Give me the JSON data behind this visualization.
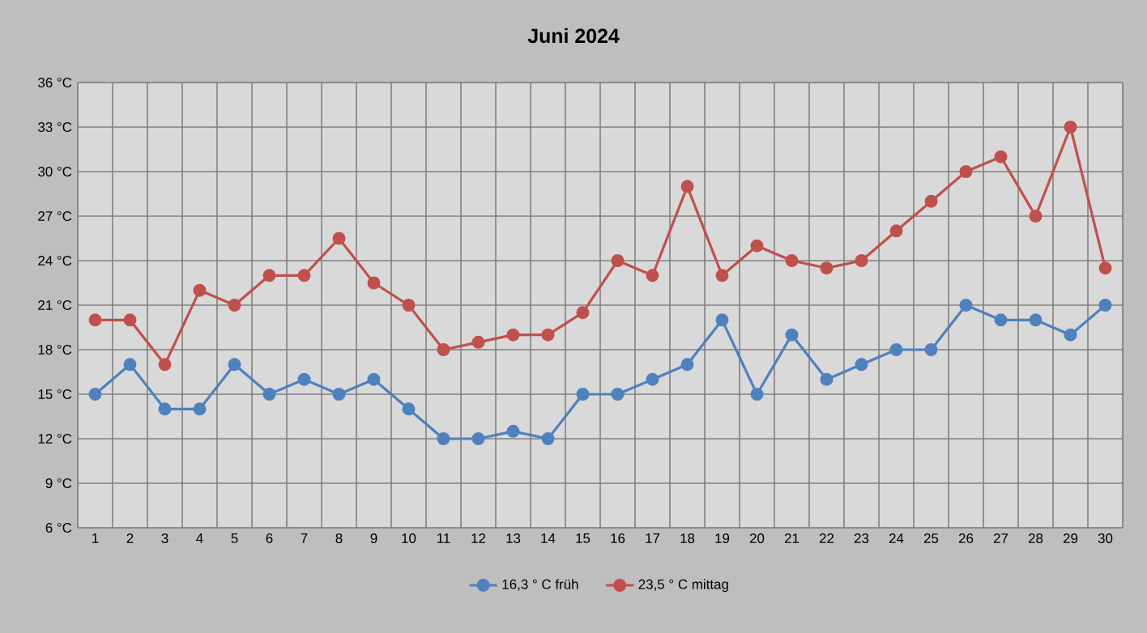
{
  "chart_data": {
    "type": "line",
    "title": "Juni 2024",
    "categories": [
      "1",
      "2",
      "3",
      "4",
      "5",
      "6",
      "7",
      "8",
      "9",
      "10",
      "11",
      "12",
      "13",
      "14",
      "15",
      "16",
      "17",
      "18",
      "19",
      "20",
      "21",
      "22",
      "23",
      "24",
      "25",
      "26",
      "27",
      "28",
      "29",
      "30"
    ],
    "series": [
      {
        "name": "16,3 ° C früh",
        "color": "#4f81bd",
        "values": [
          15,
          17,
          14,
          14,
          17,
          15,
          16,
          15,
          16,
          14,
          12,
          12,
          12.5,
          12,
          15,
          15,
          16,
          17,
          20,
          15,
          19,
          16,
          17,
          18,
          18,
          21,
          20,
          20,
          19,
          21
        ]
      },
      {
        "name": "23,5 ° C mittag",
        "color": "#c0504d",
        "values": [
          20,
          20,
          17,
          22,
          21,
          23,
          23,
          25.5,
          22.5,
          21,
          18,
          18.5,
          19,
          19,
          20.5,
          24,
          23,
          29,
          23,
          25,
          24,
          23.5,
          24,
          26,
          28,
          30,
          31,
          27,
          33,
          23.5
        ]
      }
    ],
    "ylim": [
      6,
      36
    ],
    "yticks": [
      {
        "value": 6,
        "label": "6 °C"
      },
      {
        "value": 9,
        "label": "9 °C"
      },
      {
        "value": 12,
        "label": "12 °C"
      },
      {
        "value": 15,
        "label": "15 °C"
      },
      {
        "value": 18,
        "label": "18 °C"
      },
      {
        "value": 21,
        "label": "21 °C"
      },
      {
        "value": 24,
        "label": "24 °C"
      },
      {
        "value": 27,
        "label": "27 °C"
      },
      {
        "value": 30,
        "label": "30 °C"
      },
      {
        "value": 33,
        "label": "33 °C"
      },
      {
        "value": 36,
        "label": "36 °C"
      }
    ],
    "grid": true,
    "legend": "bottom",
    "marker": "circle",
    "line_style": "solid"
  }
}
